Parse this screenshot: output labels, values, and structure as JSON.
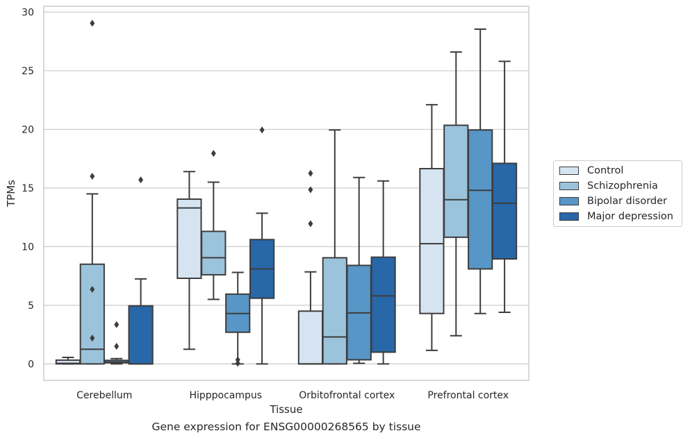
{
  "caption": "Gene expression for ENSG00000268565 by tissue",
  "chart_data": {
    "type": "boxplot",
    "xlabel": "Tissue",
    "ylabel": "TPMs",
    "ylim": [
      -1.4,
      30.5
    ],
    "yticks": [
      0,
      5,
      10,
      15,
      20,
      25,
      30
    ],
    "grid": "horizontal",
    "legend_position": "right",
    "categories": [
      "Cerebellum",
      "Hipppocampus",
      "Orbitofrontal cortex",
      "Prefrontal cortex"
    ],
    "series": [
      {
        "name": "Control",
        "color": "#d6e4f2",
        "boxes": [
          {
            "whislo": 0.0,
            "q1": 0.0,
            "med": 0.05,
            "q3": 0.32,
            "whishi": 0.55,
            "fliers": []
          },
          {
            "whislo": 1.25,
            "q1": 7.3,
            "med": 13.3,
            "q3": 14.05,
            "whishi": 16.4,
            "fliers": []
          },
          {
            "whislo": 0.0,
            "q1": 0.0,
            "med": 0.0,
            "q3": 4.5,
            "whishi": 7.85,
            "fliers": [
              11.95,
              14.85,
              16.25
            ]
          },
          {
            "whislo": 1.15,
            "q1": 4.3,
            "med": 10.25,
            "q3": 16.65,
            "whishi": 22.1,
            "fliers": []
          }
        ]
      },
      {
        "name": "Schizophrenia",
        "color": "#9cc3dc",
        "boxes": [
          {
            "whislo": 0.0,
            "q1": 0.0,
            "med": 1.25,
            "q3": 8.5,
            "whishi": 14.5,
            "fliers": [
              2.2,
              6.35,
              16.0,
              29.05
            ]
          },
          {
            "whislo": 5.5,
            "q1": 7.6,
            "med": 9.05,
            "q3": 11.3,
            "whishi": 15.5,
            "fliers": [
              17.95
            ]
          },
          {
            "whislo": 0.0,
            "q1": 0.0,
            "med": 2.3,
            "q3": 9.05,
            "whishi": 19.95,
            "fliers": []
          },
          {
            "whislo": 2.4,
            "q1": 10.8,
            "med": 14.0,
            "q3": 20.35,
            "whishi": 26.6,
            "fliers": []
          }
        ]
      },
      {
        "name": "Bipolar disorder",
        "color": "#5796c6",
        "boxes": [
          {
            "whislo": 0.0,
            "q1": 0.1,
            "med": 0.15,
            "q3": 0.3,
            "whishi": 0.45,
            "fliers": [
              1.5,
              3.35
            ]
          },
          {
            "whislo": 0.0,
            "q1": 2.7,
            "med": 4.3,
            "q3": 5.95,
            "whishi": 7.8,
            "fliers": [
              0.05,
              0.35
            ]
          },
          {
            "whislo": 0.05,
            "q1": 0.35,
            "med": 4.35,
            "q3": 8.4,
            "whishi": 15.9,
            "fliers": []
          },
          {
            "whislo": 4.3,
            "q1": 8.1,
            "med": 14.8,
            "q3": 19.95,
            "whishi": 28.55,
            "fliers": []
          }
        ]
      },
      {
        "name": "Major depression",
        "color": "#2867a8",
        "boxes": [
          {
            "whislo": 0.0,
            "q1": 0.0,
            "med": 0.0,
            "q3": 4.95,
            "whishi": 7.25,
            "fliers": [
              15.7
            ]
          },
          {
            "whislo": 0.0,
            "q1": 5.6,
            "med": 8.1,
            "q3": 10.6,
            "whishi": 12.85,
            "fliers": [
              19.95
            ]
          },
          {
            "whislo": 0.0,
            "q1": 1.0,
            "med": 5.8,
            "q3": 9.1,
            "whishi": 15.6,
            "fliers": []
          },
          {
            "whislo": 4.4,
            "q1": 8.95,
            "med": 13.7,
            "q3": 17.1,
            "whishi": 25.8,
            "fliers": []
          }
        ]
      }
    ]
  }
}
